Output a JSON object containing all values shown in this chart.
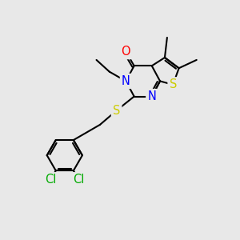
{
  "bg_color": "#e8e8e8",
  "atom_colors": {
    "C": "#000000",
    "N": "#0000ff",
    "O": "#ff0000",
    "S": "#cccc00",
    "Cl": "#00aa00"
  },
  "bond_color": "#000000",
  "bond_width": 1.5,
  "font_size": 10.5
}
